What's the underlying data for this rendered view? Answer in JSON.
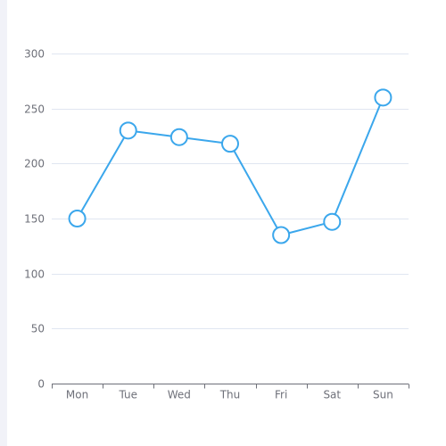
{
  "chart_data": {
    "type": "line",
    "categories": [
      "Mon",
      "Tue",
      "Wed",
      "Thu",
      "Fri",
      "Sat",
      "Sun"
    ],
    "series": [
      {
        "values": [
          150,
          230,
          224,
          218,
          135,
          147,
          260
        ]
      }
    ],
    "ylim": [
      0,
      300
    ],
    "yticks": [
      0,
      50,
      100,
      150,
      200,
      250,
      300
    ],
    "grid": true,
    "xlabel": "",
    "ylabel": "",
    "colors": {
      "line": "#3ba7ec",
      "marker_fill": "#ffffff",
      "grid": "#e0e6f1",
      "axis": "#6e7079",
      "label": "#6e7079",
      "strip": "#f1f2f8"
    }
  }
}
